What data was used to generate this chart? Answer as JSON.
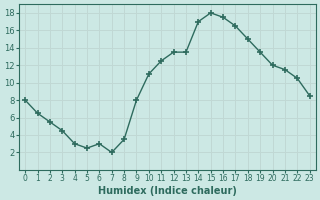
{
  "x": [
    0,
    1,
    2,
    3,
    4,
    5,
    6,
    7,
    8,
    9,
    10,
    11,
    12,
    13,
    14,
    15,
    16,
    17,
    18,
    19,
    20,
    21,
    22,
    23
  ],
  "y": [
    8,
    6.5,
    5.5,
    4.5,
    3,
    2.5,
    3,
    2,
    3.5,
    8,
    11,
    12.5,
    13.5,
    13.5,
    17,
    18,
    17.5,
    16.5,
    15,
    13.5,
    12,
    11.5,
    10.5,
    8.5
  ],
  "xlabel": "Humidex (Indice chaleur)",
  "ylim": [
    0,
    19
  ],
  "xlim": [
    -0.5,
    23.5
  ],
  "yticks": [
    2,
    4,
    6,
    8,
    10,
    12,
    14,
    16,
    18
  ],
  "xticks": [
    0,
    1,
    2,
    3,
    4,
    5,
    6,
    7,
    8,
    9,
    10,
    11,
    12,
    13,
    14,
    15,
    16,
    17,
    18,
    19,
    20,
    21,
    22,
    23
  ],
  "line_color": "#2e6b5e",
  "marker_color": "#2e6b5e",
  "bg_color": "#cce8e4",
  "grid_color": "#c0d8d4",
  "axes_color": "#2e6b5e",
  "label_color": "#2e6b5e",
  "tick_color": "#2e6b5e"
}
